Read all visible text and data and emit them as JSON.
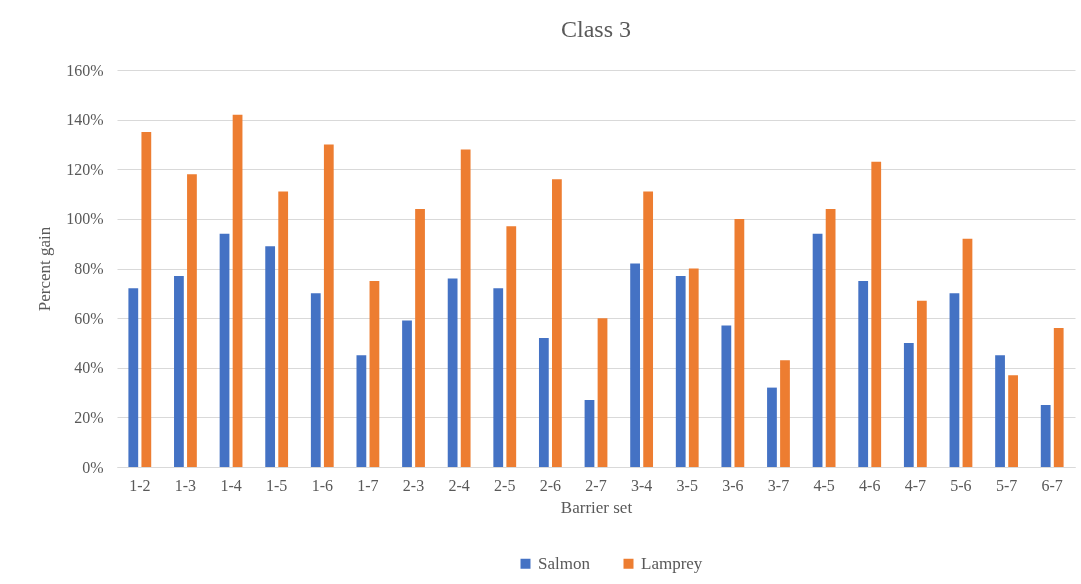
{
  "chart_data": {
    "type": "bar",
    "title": "Class 3",
    "xlabel": "Barrier set",
    "ylabel": "Percent gain",
    "categories": [
      "1-2",
      "1-3",
      "1-4",
      "1-5",
      "1-6",
      "1-7",
      "2-3",
      "2-4",
      "2-5",
      "2-6",
      "2-7",
      "3-4",
      "3-5",
      "3-6",
      "3-7",
      "4-5",
      "4-6",
      "4-7",
      "5-6",
      "5-7",
      "6-7"
    ],
    "series": [
      {
        "name": "Salmon",
        "color": "#4472c4",
        "values": [
          72,
          77,
          94,
          89,
          70,
          45,
          59,
          76,
          72,
          52,
          27,
          82,
          77,
          57,
          32,
          94,
          75,
          50,
          70,
          45,
          25
        ]
      },
      {
        "name": "Lamprey",
        "color": "#ed7d31",
        "values": [
          135,
          118,
          142,
          111,
          130,
          75,
          104,
          128,
          97,
          116,
          60,
          111,
          80,
          100,
          43,
          104,
          123,
          67,
          92,
          37,
          56
        ]
      }
    ],
    "ylim": [
      0,
      160
    ],
    "yticks": [
      {
        "value": 0,
        "label": "0%"
      },
      {
        "value": 20,
        "label": "20%"
      },
      {
        "value": 40,
        "label": "40%"
      },
      {
        "value": 60,
        "label": "60%"
      },
      {
        "value": 80,
        "label": "80%"
      },
      {
        "value": 100,
        "label": "100%"
      },
      {
        "value": 120,
        "label": "120%"
      },
      {
        "value": 140,
        "label": "140%"
      },
      {
        "value": 160,
        "label": "160%"
      }
    ],
    "grid": "y",
    "legend": "bottom"
  }
}
